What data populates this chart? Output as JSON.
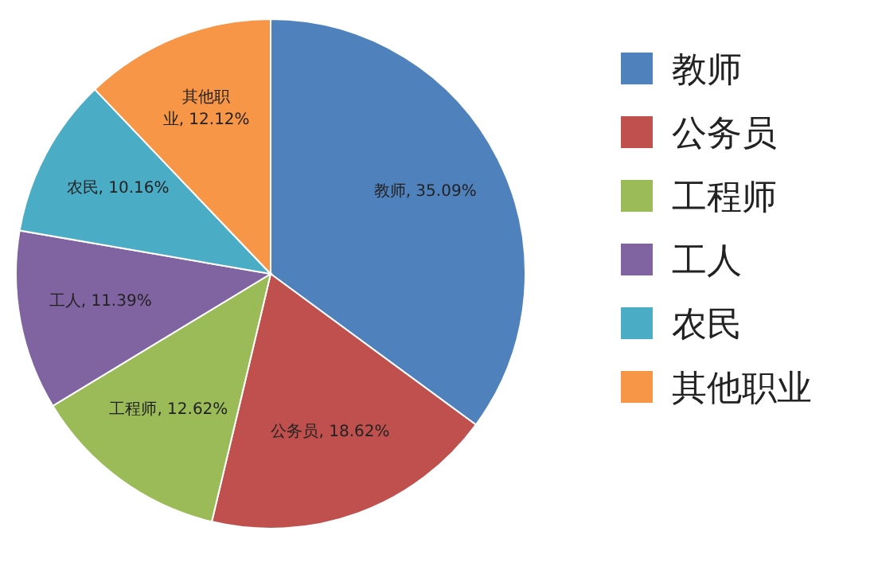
{
  "chart_data": {
    "type": "pie",
    "categories": [
      "教师",
      "公务员",
      "工程师",
      "工人",
      "农民",
      "其他职业"
    ],
    "values": [
      35.09,
      18.62,
      12.62,
      11.39,
      10.16,
      12.12
    ],
    "colors": [
      "#4f81bd",
      "#c0504d",
      "#9bbb59",
      "#8064a2",
      "#4bacc6",
      "#f79646"
    ],
    "value_labels": [
      "教师, 35.09%",
      "公务员, 18.62%",
      "工程师, 12.62%",
      "工人, 11.39%",
      "农民, 10.16%",
      "其他职业, 12.12%"
    ],
    "legend": "right"
  }
}
